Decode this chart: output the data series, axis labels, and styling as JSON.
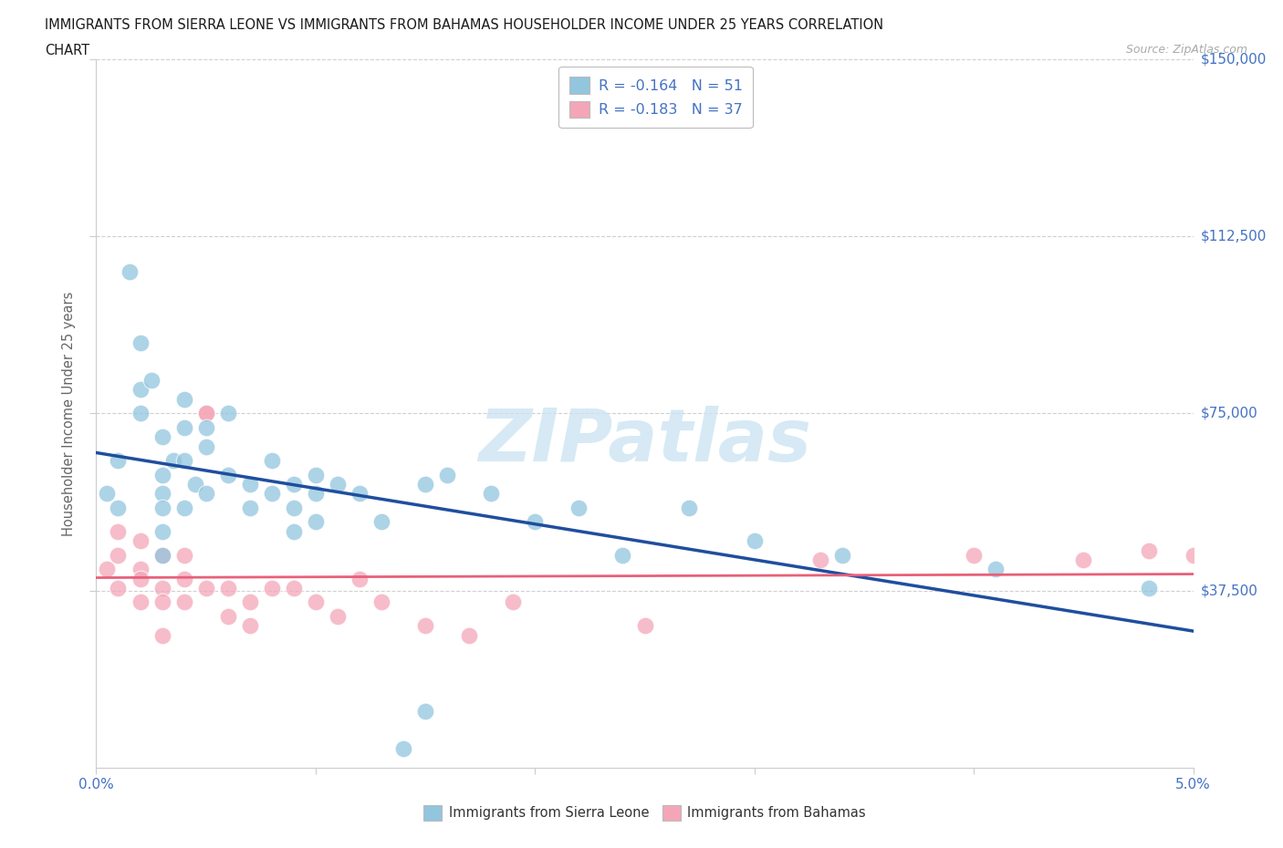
{
  "title_line1": "IMMIGRANTS FROM SIERRA LEONE VS IMMIGRANTS FROM BAHAMAS HOUSEHOLDER INCOME UNDER 25 YEARS CORRELATION",
  "title_line2": "CHART",
  "source_text": "Source: ZipAtlas.com",
  "ylabel": "Householder Income Under 25 years",
  "watermark": "ZIPatlas",
  "x_min": 0.0,
  "x_max": 0.05,
  "y_min": 0,
  "y_max": 150000,
  "y_ticks": [
    37500,
    75000,
    112500,
    150000
  ],
  "y_tick_labels": [
    "$37,500",
    "$75,000",
    "$112,500",
    "$150,000"
  ],
  "legend1_label": "R = -0.164   N = 51",
  "legend2_label": "R = -0.183   N = 37",
  "bottom_legend1": "Immigrants from Sierra Leone",
  "bottom_legend2": "Immigrants from Bahamas",
  "sierra_leone_color": "#92c5de",
  "bahamas_color": "#f4a6b8",
  "sierra_leone_line_color": "#1f4e9e",
  "bahamas_line_color": "#e8607a",
  "tick_label_color": "#4472c4",
  "grid_color": "#d0d0d0",
  "background_color": "#ffffff",
  "sierra_leone_x": [
    0.0005,
    0.001,
    0.001,
    0.0015,
    0.002,
    0.002,
    0.002,
    0.0025,
    0.003,
    0.003,
    0.003,
    0.003,
    0.003,
    0.003,
    0.0035,
    0.004,
    0.004,
    0.004,
    0.004,
    0.0045,
    0.005,
    0.005,
    0.005,
    0.006,
    0.006,
    0.007,
    0.007,
    0.008,
    0.008,
    0.009,
    0.009,
    0.009,
    0.01,
    0.01,
    0.01,
    0.011,
    0.012,
    0.013,
    0.014,
    0.015,
    0.015,
    0.016,
    0.018,
    0.02,
    0.022,
    0.024,
    0.027,
    0.03,
    0.034,
    0.041,
    0.048
  ],
  "sierra_leone_y": [
    58000,
    65000,
    55000,
    105000,
    80000,
    90000,
    75000,
    82000,
    70000,
    62000,
    58000,
    55000,
    50000,
    45000,
    65000,
    78000,
    72000,
    65000,
    55000,
    60000,
    72000,
    68000,
    58000,
    75000,
    62000,
    60000,
    55000,
    65000,
    58000,
    60000,
    55000,
    50000,
    62000,
    58000,
    52000,
    60000,
    58000,
    52000,
    4000,
    60000,
    12000,
    62000,
    58000,
    52000,
    55000,
    45000,
    55000,
    48000,
    45000,
    42000,
    38000
  ],
  "bahamas_x": [
    0.0005,
    0.001,
    0.001,
    0.001,
    0.002,
    0.002,
    0.002,
    0.002,
    0.003,
    0.003,
    0.003,
    0.003,
    0.004,
    0.004,
    0.004,
    0.005,
    0.005,
    0.005,
    0.006,
    0.006,
    0.007,
    0.007,
    0.008,
    0.009,
    0.01,
    0.011,
    0.012,
    0.013,
    0.015,
    0.017,
    0.019,
    0.025,
    0.033,
    0.04,
    0.045,
    0.048,
    0.05
  ],
  "bahamas_y": [
    42000,
    50000,
    45000,
    38000,
    42000,
    48000,
    40000,
    35000,
    38000,
    45000,
    35000,
    28000,
    45000,
    40000,
    35000,
    75000,
    75000,
    38000,
    32000,
    38000,
    35000,
    30000,
    38000,
    38000,
    35000,
    32000,
    40000,
    35000,
    30000,
    28000,
    35000,
    30000,
    44000,
    45000,
    44000,
    46000,
    45000
  ]
}
